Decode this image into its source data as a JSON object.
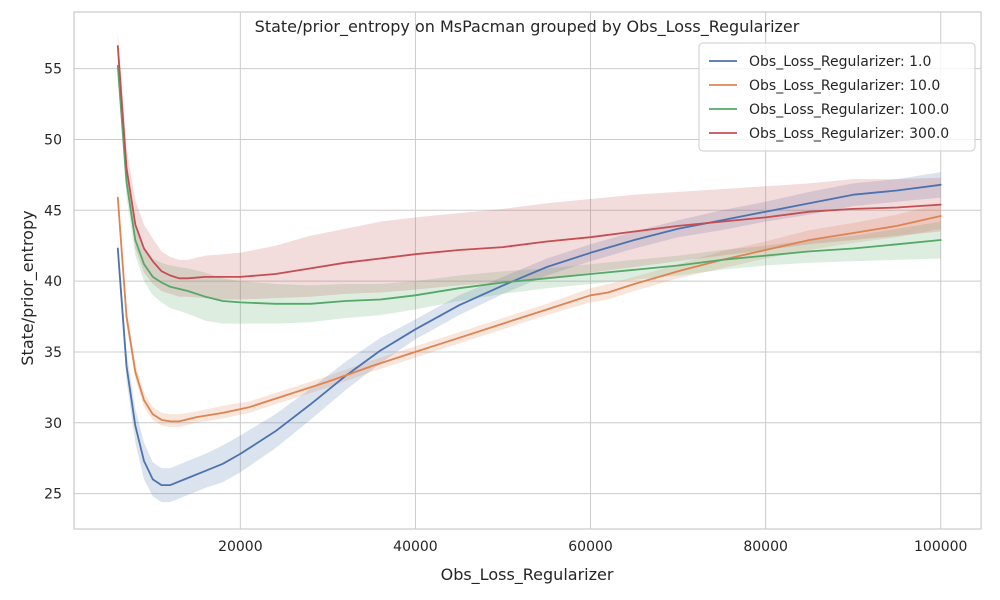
{
  "chart_data": {
    "type": "line",
    "title": "State/prior_entropy on MsPacman grouped by Obs_Loss_Regularizer",
    "xlabel": "Obs_Loss_Regularizer",
    "ylabel": "State/prior_entropy",
    "xlim": [
      1000,
      104600
    ],
    "ylim": [
      22.5,
      59.0
    ],
    "x_ticks": [
      {
        "value": 20000,
        "label": "20000"
      },
      {
        "value": 40000,
        "label": "40000"
      },
      {
        "value": 60000,
        "label": "60000"
      },
      {
        "value": 80000,
        "label": "80000"
      },
      {
        "value": 100000,
        "label": "100000"
      }
    ],
    "y_ticks": [
      {
        "value": 25,
        "label": "25"
      },
      {
        "value": 30,
        "label": "30"
      },
      {
        "value": 35,
        "label": "35"
      },
      {
        "value": 40,
        "label": "40"
      },
      {
        "value": 45,
        "label": "45"
      },
      {
        "value": 50,
        "label": "50"
      },
      {
        "value": 55,
        "label": "55"
      }
    ],
    "grid": true,
    "legend_position": "top-right",
    "band_opacity": 0.2,
    "series": [
      {
        "name": "Obs_Loss_Regularizer: 1.0",
        "color": "#4c72b0",
        "x": [
          6000,
          7000,
          8000,
          9000,
          10000,
          11000,
          12000,
          14000,
          16000,
          18000,
          20000,
          24000,
          28000,
          32000,
          36000,
          40000,
          45000,
          50000,
          55000,
          60000,
          65000,
          70000,
          75000,
          80000,
          85000,
          90000,
          95000,
          100000
        ],
        "y": [
          42.3,
          34.0,
          29.8,
          27.3,
          26.0,
          25.6,
          25.6,
          26.1,
          26.6,
          27.1,
          27.8,
          29.4,
          31.3,
          33.3,
          35.1,
          36.6,
          38.3,
          39.7,
          41.0,
          42.0,
          42.9,
          43.7,
          44.3,
          44.9,
          45.5,
          46.1,
          46.4,
          46.8
        ],
        "lo": [
          41.5,
          33.0,
          28.6,
          26.0,
          24.8,
          24.4,
          24.4,
          24.9,
          25.4,
          25.8,
          26.5,
          28.2,
          30.2,
          32.3,
          34.2,
          35.9,
          37.6,
          39.1,
          40.4,
          41.4,
          42.3,
          43.1,
          43.6,
          44.2,
          44.7,
          45.3,
          45.6,
          45.9
        ],
        "hi": [
          43.1,
          35.0,
          31.0,
          28.6,
          27.2,
          26.8,
          26.8,
          27.3,
          27.8,
          28.4,
          29.1,
          30.6,
          32.4,
          34.3,
          36.0,
          37.3,
          39.0,
          40.3,
          41.6,
          42.6,
          43.5,
          44.3,
          45.0,
          45.6,
          46.3,
          46.9,
          47.2,
          47.7
        ]
      },
      {
        "name": "Obs_Loss_Regularizer: 10.0",
        "color": "#dd8452",
        "x": [
          6000,
          7000,
          8000,
          9000,
          10000,
          11000,
          12000,
          13000,
          15000,
          18000,
          21000,
          25000,
          30000,
          35000,
          40000,
          45000,
          50000,
          55000,
          60000,
          62000,
          65000,
          70000,
          75000,
          80000,
          85000,
          90000,
          95000,
          100000
        ],
        "y": [
          45.9,
          37.5,
          33.6,
          31.6,
          30.6,
          30.2,
          30.1,
          30.1,
          30.4,
          30.7,
          31.1,
          31.9,
          32.9,
          34.0,
          35.0,
          36.0,
          37.0,
          38.0,
          39.0,
          39.2,
          39.8,
          40.7,
          41.5,
          42.2,
          42.9,
          43.4,
          43.9,
          44.6
        ],
        "lo": [
          45.1,
          36.9,
          33.1,
          31.1,
          30.2,
          29.8,
          29.7,
          29.7,
          30.0,
          30.3,
          30.7,
          31.5,
          32.5,
          33.6,
          34.6,
          35.6,
          36.6,
          37.6,
          38.5,
          38.7,
          39.3,
          40.2,
          40.9,
          41.6,
          42.2,
          42.7,
          43.1,
          43.7
        ],
        "hi": [
          46.7,
          38.1,
          34.2,
          32.1,
          31.1,
          30.7,
          30.6,
          30.6,
          30.8,
          31.2,
          31.5,
          32.3,
          33.3,
          34.4,
          35.4,
          36.4,
          37.4,
          38.4,
          39.5,
          39.8,
          40.3,
          41.2,
          42.1,
          42.8,
          43.6,
          44.1,
          44.7,
          45.5
        ]
      },
      {
        "name": "Obs_Loss_Regularizer: 100.0",
        "color": "#55a868",
        "x": [
          6000,
          7000,
          8000,
          9000,
          10000,
          11000,
          12000,
          14000,
          16000,
          18000,
          20000,
          24000,
          28000,
          32000,
          36000,
          40000,
          45000,
          50000,
          55000,
          60000,
          65000,
          70000,
          75000,
          80000,
          85000,
          90000,
          95000,
          100000
        ],
        "y": [
          55.2,
          47.0,
          42.9,
          41.2,
          40.3,
          39.9,
          39.6,
          39.3,
          38.9,
          38.6,
          38.5,
          38.4,
          38.4,
          38.6,
          38.7,
          39.0,
          39.5,
          39.9,
          40.2,
          40.5,
          40.8,
          41.1,
          41.5,
          41.8,
          42.1,
          42.3,
          42.6,
          42.9
        ],
        "lo": [
          54.3,
          45.9,
          41.8,
          40.0,
          39.0,
          38.5,
          38.1,
          37.7,
          37.2,
          37.0,
          37.0,
          37.0,
          37.1,
          37.4,
          37.6,
          38.0,
          38.6,
          39.1,
          39.5,
          39.8,
          40.1,
          40.4,
          40.8,
          41.1,
          41.3,
          41.4,
          41.5,
          41.6
        ],
        "hi": [
          56.1,
          48.1,
          44.0,
          42.4,
          41.6,
          41.3,
          41.1,
          40.9,
          40.6,
          40.2,
          40.0,
          39.8,
          39.7,
          39.8,
          39.8,
          40.0,
          40.4,
          40.7,
          40.9,
          41.2,
          41.5,
          41.8,
          42.2,
          42.5,
          42.9,
          43.2,
          43.7,
          44.2
        ]
      },
      {
        "name": "Obs_Loss_Regularizer: 300.0",
        "color": "#c44e52",
        "x": [
          6000,
          7000,
          8000,
          9000,
          10000,
          11000,
          12000,
          13000,
          14000,
          16000,
          18000,
          20000,
          24000,
          28000,
          32000,
          36000,
          40000,
          45000,
          50000,
          55000,
          60000,
          65000,
          70000,
          75000,
          80000,
          85000,
          90000,
          95000,
          100000
        ],
        "y": [
          56.6,
          48.0,
          44.0,
          42.3,
          41.4,
          40.7,
          40.4,
          40.2,
          40.2,
          40.3,
          40.3,
          40.3,
          40.5,
          40.9,
          41.3,
          41.6,
          41.9,
          42.2,
          42.4,
          42.8,
          43.1,
          43.5,
          43.9,
          44.2,
          44.5,
          44.9,
          45.1,
          45.2,
          45.4
        ],
        "lo": [
          55.6,
          46.6,
          42.3,
          40.6,
          39.8,
          39.3,
          39.1,
          38.9,
          38.9,
          38.8,
          38.7,
          38.7,
          38.8,
          38.9,
          39.1,
          39.2,
          39.4,
          39.7,
          39.9,
          40.2,
          40.6,
          41.0,
          41.4,
          41.8,
          42.2,
          42.6,
          42.9,
          43.2,
          43.5
        ],
        "hi": [
          57.6,
          49.4,
          45.7,
          44.0,
          43.0,
          42.1,
          41.7,
          41.5,
          41.5,
          41.8,
          41.9,
          42.0,
          42.5,
          43.2,
          43.7,
          44.2,
          44.5,
          44.8,
          45.1,
          45.5,
          45.8,
          46.1,
          46.3,
          46.5,
          46.7,
          46.9,
          47.2,
          47.2,
          47.3
        ]
      }
    ]
  }
}
